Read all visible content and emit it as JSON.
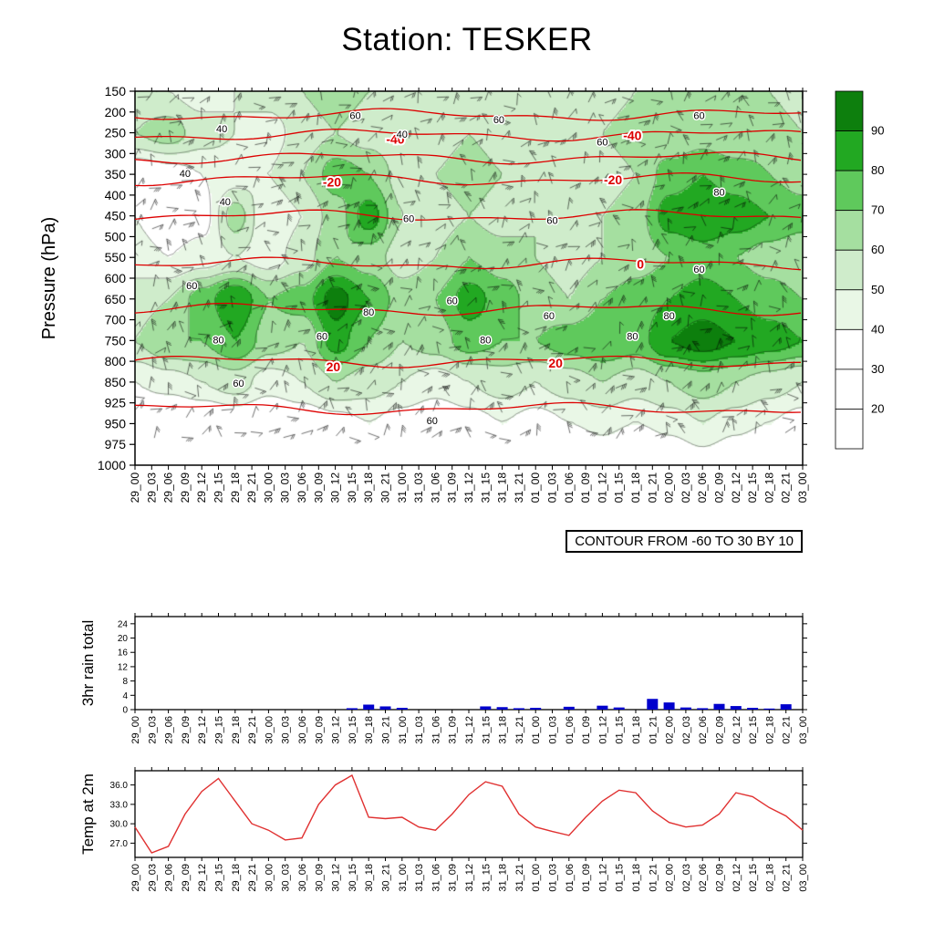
{
  "title": "Station: TESKER",
  "time_labels": [
    "29_00",
    "29_03",
    "29_06",
    "29_09",
    "29_12",
    "29_15",
    "29_18",
    "29_21",
    "30_00",
    "30_03",
    "30_06",
    "30_09",
    "30_12",
    "30_15",
    "30_18",
    "30_21",
    "31_00",
    "31_03",
    "31_06",
    "31_09",
    "31_12",
    "31_15",
    "31_18",
    "31_21",
    "01_00",
    "01_03",
    "01_06",
    "01_09",
    "01_12",
    "01_15",
    "01_18",
    "01_21",
    "02_00",
    "02_03",
    "02_06",
    "02_09",
    "02_12",
    "02_15",
    "02_18",
    "02_21",
    "03_00"
  ],
  "chart_data": [
    {
      "type": "heatmap",
      "name": "relative-humidity-pressure-time-section",
      "ylabel": "Pressure (hPa)",
      "x_source": "time_labels",
      "y_axis": {
        "ticks": [
          150,
          200,
          250,
          300,
          350,
          400,
          450,
          500,
          550,
          600,
          650,
          700,
          750,
          800,
          850,
          925,
          950,
          975,
          1000
        ],
        "scale": "level-index"
      },
      "contour_note": "CONTOUR FROM -60 TO 30 BY 10",
      "contour_color": "#dd0000",
      "shade_levels": [
        20,
        30,
        40,
        50,
        60,
        70,
        80,
        90
      ],
      "shade_colors": [
        "#ffffff",
        "#ffffff",
        "#ffffff",
        "#e9f7e6",
        "#cfeccb",
        "#a5dfa0",
        "#5fc95c",
        "#22a822",
        "#0d7f0d"
      ],
      "colorbar_labels": [
        90,
        80,
        70,
        60,
        50,
        40,
        30,
        20
      ],
      "grid": {
        "pressures": [
          150,
          250,
          350,
          450,
          550,
          650,
          750,
          850,
          950
        ],
        "times_every_n_labels": 2,
        "values": [
          [
            55,
            50,
            45,
            50,
            55,
            60,
            65,
            60,
            55,
            50,
            55,
            60,
            55,
            50,
            55,
            60,
            65,
            60,
            65,
            60,
            55
          ],
          [
            60,
            65,
            55,
            50,
            45,
            55,
            60,
            55,
            50,
            55,
            60,
            55,
            50,
            55,
            60,
            65,
            60,
            65,
            60,
            65,
            60
          ],
          [
            30,
            35,
            40,
            45,
            50,
            60,
            75,
            70,
            55,
            60,
            65,
            60,
            55,
            50,
            55,
            60,
            75,
            80,
            75,
            70,
            65
          ],
          [
            40,
            30,
            35,
            65,
            40,
            50,
            65,
            85,
            60,
            55,
            60,
            55,
            60,
            55,
            60,
            65,
            85,
            90,
            85,
            80,
            75
          ],
          [
            45,
            40,
            45,
            50,
            45,
            55,
            70,
            65,
            55,
            60,
            70,
            65,
            60,
            55,
            60,
            65,
            70,
            75,
            70,
            65,
            60
          ],
          [
            55,
            60,
            75,
            90,
            70,
            75,
            95,
            80,
            65,
            70,
            85,
            75,
            65,
            60,
            70,
            75,
            80,
            85,
            80,
            75,
            70
          ],
          [
            60,
            70,
            70,
            80,
            65,
            60,
            85,
            70,
            60,
            65,
            75,
            70,
            70,
            75,
            80,
            75,
            90,
            95,
            90,
            85,
            80
          ],
          [
            40,
            45,
            50,
            55,
            45,
            50,
            60,
            55,
            50,
            45,
            50,
            55,
            50,
            55,
            60,
            55,
            60,
            65,
            60,
            55,
            50
          ],
          [
            25,
            20,
            25,
            30,
            25,
            30,
            35,
            40,
            35,
            30,
            35,
            40,
            35,
            40,
            45,
            40,
            45,
            50,
            45,
            40,
            35
          ]
        ]
      },
      "temp_contours": [
        {
          "level": -50,
          "pressure": 207
        },
        {
          "level": -40,
          "pressure": 255
        },
        {
          "level": -30,
          "pressure": 310
        },
        {
          "level": -20,
          "pressure": 362
        },
        {
          "level": -10,
          "pressure": 450
        },
        {
          "level": 0,
          "pressure": 565
        },
        {
          "level": 10,
          "pressure": 675
        },
        {
          "level": 20,
          "pressure": 800
        },
        {
          "level": 30,
          "pressure": 932
        }
      ],
      "temp_contour_labels": [
        {
          "text": "-40",
          "fx": 0.39,
          "fy": 0.128
        },
        {
          "text": "-40",
          "fx": 0.745,
          "fy": 0.118
        },
        {
          "text": "-20",
          "fx": 0.295,
          "fy": 0.243
        },
        {
          "text": "-20",
          "fx": 0.716,
          "fy": 0.237
        },
        {
          "text": "0",
          "fx": 0.757,
          "fy": 0.462
        },
        {
          "text": "20",
          "fx": 0.297,
          "fy": 0.737
        },
        {
          "text": "20",
          "fx": 0.63,
          "fy": 0.727
        }
      ],
      "rh_line_labels": [
        {
          "text": "40",
          "fx": 0.13,
          "fy": 0.1
        },
        {
          "text": "60",
          "fx": 0.33,
          "fy": 0.065
        },
        {
          "text": "40",
          "fx": 0.4,
          "fy": 0.115
        },
        {
          "text": "60",
          "fx": 0.545,
          "fy": 0.075
        },
        {
          "text": "60",
          "fx": 0.7,
          "fy": 0.135
        },
        {
          "text": "60",
          "fx": 0.845,
          "fy": 0.065
        },
        {
          "text": "40",
          "fx": 0.135,
          "fy": 0.295
        },
        {
          "text": "40",
          "fx": 0.075,
          "fy": 0.22
        },
        {
          "text": "60",
          "fx": 0.41,
          "fy": 0.34
        },
        {
          "text": "60",
          "fx": 0.625,
          "fy": 0.345
        },
        {
          "text": "80",
          "fx": 0.875,
          "fy": 0.27
        },
        {
          "text": "60",
          "fx": 0.085,
          "fy": 0.52
        },
        {
          "text": "80",
          "fx": 0.125,
          "fy": 0.665
        },
        {
          "text": "60",
          "fx": 0.28,
          "fy": 0.655
        },
        {
          "text": "80",
          "fx": 0.35,
          "fy": 0.59
        },
        {
          "text": "60",
          "fx": 0.475,
          "fy": 0.56
        },
        {
          "text": "80",
          "fx": 0.525,
          "fy": 0.665
        },
        {
          "text": "60",
          "fx": 0.62,
          "fy": 0.6
        },
        {
          "text": "80",
          "fx": 0.8,
          "fy": 0.6
        },
        {
          "text": "60",
          "fx": 0.845,
          "fy": 0.475
        },
        {
          "text": "60",
          "fx": 0.445,
          "fy": 0.88
        },
        {
          "text": "60",
          "fx": 0.155,
          "fy": 0.78
        },
        {
          "text": "80",
          "fx": 0.745,
          "fy": 0.655
        }
      ]
    },
    {
      "type": "bar",
      "name": "rain-3hr-total",
      "ylabel": "3hr rain total",
      "x_source": "time_labels",
      "y_ticks": [
        0,
        4,
        8,
        12,
        16,
        20,
        24
      ],
      "ylim": [
        0,
        26
      ],
      "bar_color": "#0000cc",
      "values": [
        0,
        0,
        0,
        0,
        0,
        0,
        0,
        0,
        0,
        0,
        0,
        0,
        0,
        0.4,
        1.4,
        0.9,
        0.5,
        0,
        0,
        0,
        0,
        0.9,
        0.7,
        0.4,
        0.5,
        0,
        0.8,
        0,
        1.1,
        0.6,
        0,
        3.0,
        2.0,
        0.6,
        0.4,
        1.6,
        1.0,
        0.5,
        0.3,
        1.5,
        0
      ]
    },
    {
      "type": "line",
      "name": "temp-at-2m",
      "ylabel": "Temp at 2m",
      "x_source": "time_labels",
      "y_ticks": [
        27.0,
        30.0,
        33.0,
        36.0
      ],
      "ylim": [
        24.8,
        38.2
      ],
      "line_color": "#e03030",
      "values": [
        29.5,
        25.5,
        26.5,
        31.5,
        35.0,
        37.0,
        33.5,
        30.0,
        29.0,
        27.5,
        27.8,
        33.0,
        36.0,
        37.5,
        31.0,
        30.8,
        31.0,
        29.5,
        29.0,
        31.5,
        34.5,
        36.5,
        35.8,
        31.5,
        29.5,
        28.8,
        28.2,
        31.0,
        33.5,
        35.2,
        34.8,
        32.0,
        30.2,
        29.5,
        29.8,
        31.5,
        34.8,
        34.2,
        32.5,
        31.2,
        29.0
      ]
    }
  ]
}
